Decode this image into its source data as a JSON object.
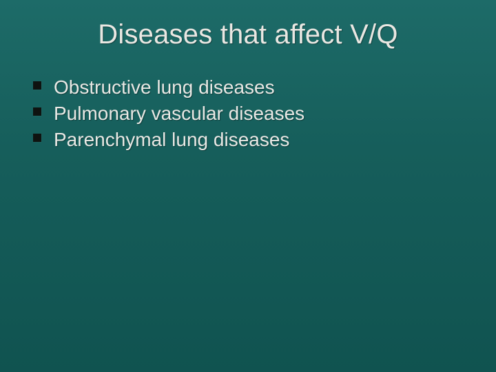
{
  "slide": {
    "background_gradient": [
      "#1d6b68",
      "#165e5b",
      "#105350"
    ],
    "title": {
      "text": "Diseases that affect V/Q",
      "font_size_pt": 32,
      "color": "#e9e7e2",
      "weight": "normal",
      "align": "center"
    },
    "bullets": {
      "marker_color": "#0f1310",
      "marker_shape": "square",
      "text_color": "#e8e8e4",
      "font_size_pt": 22,
      "items": [
        "Obstructive lung diseases",
        "Pulmonary vascular diseases",
        "Parenchymal lung diseases"
      ]
    }
  }
}
